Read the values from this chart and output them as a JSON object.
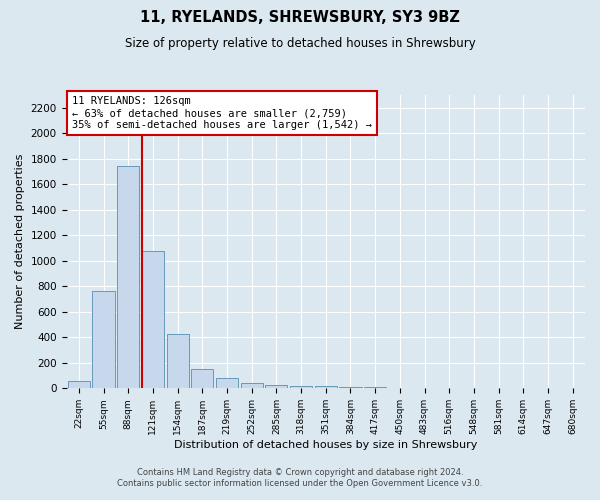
{
  "title": "11, RYELANDS, SHREWSBURY, SY3 9BZ",
  "subtitle": "Size of property relative to detached houses in Shrewsbury",
  "xlabel": "Distribution of detached houses by size in Shrewsbury",
  "ylabel": "Number of detached properties",
  "footer_line1": "Contains HM Land Registry data © Crown copyright and database right 2024.",
  "footer_line2": "Contains public sector information licensed under the Open Government Licence v3.0.",
  "bin_labels": [
    "22sqm",
    "55sqm",
    "88sqm",
    "121sqm",
    "154sqm",
    "187sqm",
    "219sqm",
    "252sqm",
    "285sqm",
    "318sqm",
    "351sqm",
    "384sqm",
    "417sqm",
    "450sqm",
    "483sqm",
    "516sqm",
    "548sqm",
    "581sqm",
    "614sqm",
    "647sqm",
    "680sqm"
  ],
  "bar_values": [
    60,
    760,
    1740,
    1075,
    430,
    155,
    85,
    45,
    28,
    20,
    15,
    10,
    8,
    0,
    0,
    0,
    0,
    0,
    0,
    0,
    0
  ],
  "bar_color": "#c8d8ec",
  "bar_edge_color": "#6699bb",
  "vline_color": "#cc0000",
  "annotation_title": "11 RYELANDS: 126sqm",
  "annotation_line1": "← 63% of detached houses are smaller (2,759)",
  "annotation_line2": "35% of semi-detached houses are larger (1,542) →",
  "annotation_box_color": "#ffffff",
  "annotation_box_edge": "#cc0000",
  "ylim": [
    0,
    2300
  ],
  "yticks": [
    0,
    200,
    400,
    600,
    800,
    1000,
    1200,
    1400,
    1600,
    1800,
    2000,
    2200
  ],
  "outer_bg_color": "#dce8f0",
  "plot_bg_color": "#dce8f0",
  "grid_color": "#ffffff",
  "footer_color": "#444444"
}
